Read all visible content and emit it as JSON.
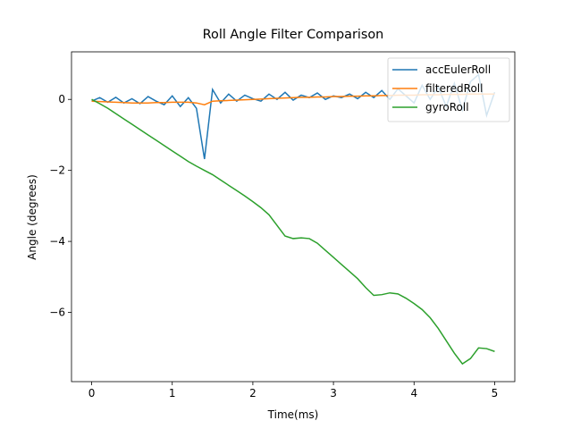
{
  "chart_data": {
    "type": "line",
    "title": "Roll Angle Filter Comparison",
    "x_label": "Time(ms)",
    "y_label": "Angle (degrees)",
    "x": [
      0,
      0.1,
      0.2,
      0.3,
      0.4,
      0.5,
      0.6,
      0.7,
      0.8,
      0.9,
      1.0,
      1.1,
      1.2,
      1.3,
      1.4,
      1.5,
      1.6,
      1.7,
      1.8,
      1.9,
      2.0,
      2.1,
      2.2,
      2.3,
      2.4,
      2.5,
      2.6,
      2.7,
      2.8,
      2.9,
      3.0,
      3.1,
      3.2,
      3.3,
      3.4,
      3.5,
      3.6,
      3.7,
      3.8,
      3.9,
      4.0,
      4.1,
      4.2,
      4.3,
      4.4,
      4.5,
      4.6,
      4.7,
      4.8,
      4.9,
      5.0
    ],
    "series": [
      {
        "name": "accEulerRoll",
        "color": "#1f77b4",
        "values": [
          -0.05,
          0.05,
          -0.08,
          0.06,
          -0.1,
          0.02,
          -0.12,
          0.08,
          -0.05,
          -0.15,
          0.1,
          -0.2,
          0.05,
          -0.25,
          -1.68,
          0.28,
          -0.1,
          0.15,
          -0.05,
          0.12,
          0.02,
          -0.05,
          0.15,
          0.0,
          0.2,
          -0.02,
          0.12,
          0.05,
          0.18,
          0.0,
          0.1,
          0.05,
          0.15,
          0.02,
          0.2,
          0.05,
          0.25,
          0.0,
          0.3,
          0.1,
          -0.1,
          0.4,
          0.0,
          0.35,
          -0.2,
          0.45,
          -0.3,
          0.5,
          0.7,
          -0.45,
          0.2
        ]
      },
      {
        "name": "filteredRoll",
        "color": "#ff7f0e",
        "values": [
          -0.05,
          -0.06,
          -0.07,
          -0.08,
          -0.09,
          -0.1,
          -0.1,
          -0.1,
          -0.09,
          -0.09,
          -0.08,
          -0.08,
          -0.08,
          -0.1,
          -0.15,
          -0.05,
          -0.04,
          -0.03,
          -0.02,
          -0.01,
          0.0,
          0.01,
          0.02,
          0.03,
          0.04,
          0.05,
          0.06,
          0.06,
          0.07,
          0.07,
          0.08,
          0.08,
          0.09,
          0.09,
          0.1,
          0.1,
          0.11,
          0.11,
          0.12,
          0.12,
          0.12,
          0.13,
          0.13,
          0.13,
          0.14,
          0.14,
          0.14,
          0.15,
          0.15,
          0.15,
          0.15
        ]
      },
      {
        "name": "gyroRoll",
        "color": "#2ca02c",
        "values": [
          0,
          -0.12,
          -0.25,
          -0.4,
          -0.55,
          -0.7,
          -0.85,
          -1.0,
          -1.15,
          -1.3,
          -1.45,
          -1.6,
          -1.75,
          -1.88,
          -2.0,
          -2.12,
          -2.27,
          -2.42,
          -2.57,
          -2.72,
          -2.88,
          -3.05,
          -3.25,
          -3.55,
          -3.85,
          -3.92,
          -3.9,
          -3.92,
          -4.05,
          -4.25,
          -4.45,
          -4.65,
          -4.85,
          -5.05,
          -5.3,
          -5.52,
          -5.5,
          -5.45,
          -5.48,
          -5.6,
          -5.75,
          -5.92,
          -6.15,
          -6.45,
          -6.8,
          -7.15,
          -7.45,
          -7.3,
          -7.0,
          -7.02,
          -7.1
        ]
      }
    ],
    "xlim": [
      -0.25,
      5.25
    ],
    "ylim": [
      -7.95,
      1.34
    ],
    "xticks": [
      0,
      1,
      2,
      3,
      4,
      5
    ],
    "yticks": [
      {
        "value": -6,
        "label": "−6"
      },
      {
        "value": -4,
        "label": "−4"
      },
      {
        "value": -2,
        "label": "−2"
      },
      0
    ],
    "legend": "upper right",
    "grid": false
  }
}
